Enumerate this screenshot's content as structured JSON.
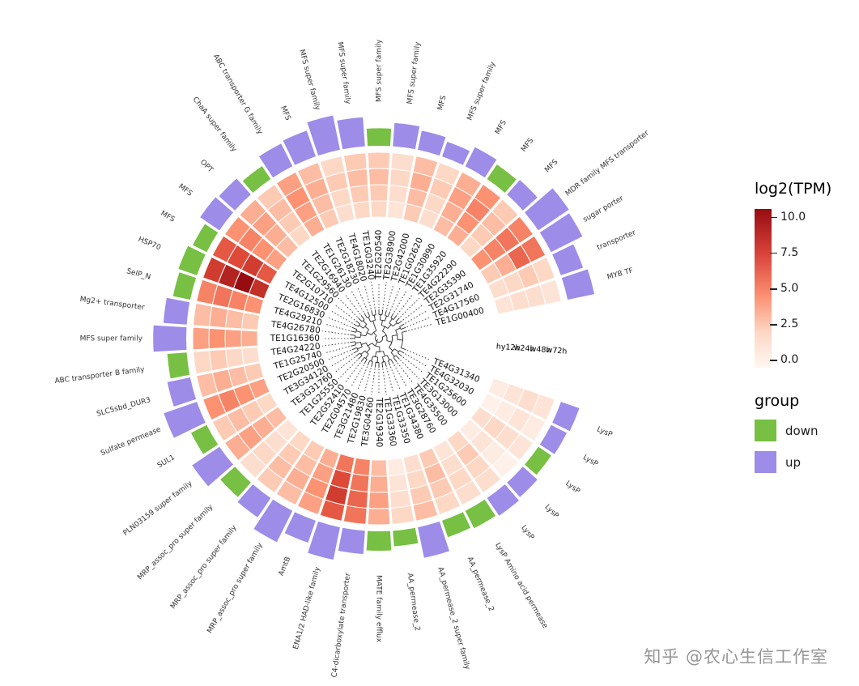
{
  "chart_data": {
    "type": "heatmap",
    "subtype": "circular-heatmap-with-radial-dendrogram",
    "title": "",
    "samples": [
      "hy12h",
      "w24h",
      "w48h",
      "w72h"
    ],
    "scale": {
      "title": "log2(TPM)",
      "min": 0,
      "max": 10,
      "ticks": [
        "10.0",
        "7.5",
        "5.0",
        "2.5",
        "0.0"
      ]
    },
    "group_colors": {
      "down": "#77C043",
      "up": "#9D8CE8"
    },
    "scale_colors": {
      "low": "#FFF7F3",
      "high": "#960C11"
    },
    "genes": [
      {
        "id": "TE2G20540",
        "family": "MFS super family",
        "group": "down",
        "bar": 0.45,
        "values": [
          2.5,
          3.0,
          3.5,
          3.0
        ]
      },
      {
        "id": "TE2G38900",
        "family": "MFS super family",
        "group": "up",
        "bar": 0.6,
        "values": [
          1.5,
          2.0,
          2.5,
          2.0
        ]
      },
      {
        "id": "TE2G42000",
        "family": "MFS",
        "group": "up",
        "bar": 0.5,
        "values": [
          3.0,
          3.5,
          4.0,
          3.5
        ]
      },
      {
        "id": "TE1G02620",
        "family": "MFS super family",
        "group": "up",
        "bar": 0.4,
        "values": [
          2.0,
          2.5,
          3.0,
          2.5
        ]
      },
      {
        "id": "TE1G30890",
        "family": "MFS",
        "group": "up",
        "bar": 0.55,
        "values": [
          3.5,
          4.0,
          4.5,
          4.0
        ]
      },
      {
        "id": "TE1G35920",
        "family": "MFS",
        "group": "down",
        "bar": 0.45,
        "values": [
          4.0,
          5.0,
          5.5,
          5.0
        ]
      },
      {
        "id": "TE4G22290",
        "family": "MFS",
        "group": "up",
        "bar": 0.5,
        "values": [
          2.5,
          3.0,
          3.5,
          3.0
        ]
      },
      {
        "id": "TE2G35390",
        "family": "MDR family MFS transporter",
        "group": "up",
        "bar": 0.95,
        "values": [
          5.0,
          5.5,
          6.0,
          5.5
        ]
      },
      {
        "id": "TE2G31740",
        "family": "sugar porter",
        "group": "up",
        "bar": 0.9,
        "values": [
          3.0,
          4.0,
          6.5,
          6.0
        ]
      },
      {
        "id": "TE4G17560",
        "family": "transporter",
        "group": "up",
        "bar": 0.6,
        "values": [
          2.0,
          2.5,
          3.0,
          2.5
        ]
      },
      {
        "id": "TE1G00400",
        "family": "MYB TF",
        "group": "up",
        "bar": 0.7,
        "values": [
          1.5,
          2.0,
          2.0,
          1.5
        ]
      },
      {
        "id": "TE4G31340",
        "family": "LysP",
        "group": "up",
        "bar": 0.5,
        "values": [
          1.0,
          1.5,
          2.0,
          1.5
        ]
      },
      {
        "id": "TE4G32030",
        "family": "LysP",
        "group": "up",
        "bar": 0.45,
        "values": [
          0.5,
          1.0,
          1.5,
          1.0
        ]
      },
      {
        "id": "TE1G25600",
        "family": "LysP",
        "group": "down",
        "bar": 0.4,
        "values": [
          2.0,
          2.5,
          2.0,
          1.5
        ]
      },
      {
        "id": "TE3G13000",
        "family": "LysP",
        "group": "up",
        "bar": 0.5,
        "values": [
          1.0,
          1.5,
          1.0,
          0.5
        ]
      },
      {
        "id": "TE4G35500",
        "family": "LysP",
        "group": "up",
        "bar": 0.55,
        "values": [
          2.5,
          3.0,
          2.5,
          2.0
        ]
      },
      {
        "id": "TE3G28760",
        "family": "LysP Amino acid permease",
        "group": "down",
        "bar": 0.5,
        "values": [
          1.5,
          2.0,
          2.5,
          2.0
        ]
      },
      {
        "id": "TE1G34380",
        "family": "AA_permease_2",
        "group": "down",
        "bar": 0.45,
        "values": [
          3.0,
          3.5,
          3.0,
          2.5
        ]
      },
      {
        "id": "TE1G33350",
        "family": "AA_permease_2 super family",
        "group": "up",
        "bar": 0.8,
        "values": [
          2.0,
          2.5,
          3.0,
          3.5
        ]
      },
      {
        "id": "TE1G33360",
        "family": "AA_permease_2",
        "group": "down",
        "bar": 0.4,
        "values": [
          1.0,
          1.5,
          2.0,
          2.5
        ]
      },
      {
        "id": "TE2G19340",
        "family": "MATE family efflux",
        "group": "down",
        "bar": 0.5,
        "values": [
          3.5,
          4.0,
          4.5,
          4.0
        ]
      },
      {
        "id": "TE3G04260",
        "family": "C4-dicarboxylate transporter",
        "group": "up",
        "bar": 0.6,
        "values": [
          5.5,
          6.0,
          6.5,
          6.0
        ]
      },
      {
        "id": "TE2G19830",
        "family": "ENA1/2 HAD-like family",
        "group": "up",
        "bar": 0.85,
        "values": [
          6.0,
          7.5,
          8.0,
          7.0
        ]
      },
      {
        "id": "TE3G21480",
        "family": "AmtB",
        "group": "up",
        "bar": 0.6,
        "values": [
          4.0,
          4.5,
          5.0,
          4.5
        ]
      },
      {
        "id": "TE2G04570",
        "family": "MRP_assoc_pro super family",
        "group": "up",
        "bar": 0.9,
        "values": [
          3.0,
          3.5,
          4.0,
          3.5
        ]
      },
      {
        "id": "TE2G52410",
        "family": "MRP_assoc_pro super family",
        "group": "up",
        "bar": 0.6,
        "values": [
          2.5,
          3.0,
          3.5,
          3.0
        ]
      },
      {
        "id": "TE1G25550",
        "family": "MRP_assoc_pro super family",
        "group": "down",
        "bar": 0.5,
        "values": [
          1.5,
          2.0,
          2.5,
          2.0
        ]
      },
      {
        "id": "TE3G31760",
        "family": "PLN03159 super family",
        "group": "up",
        "bar": 0.85,
        "values": [
          3.5,
          4.0,
          4.5,
          4.0
        ]
      },
      {
        "id": "TE3G34120",
        "family": "SUL1",
        "group": "down",
        "bar": 0.45,
        "values": [
          2.5,
          3.0,
          3.5,
          3.0
        ]
      },
      {
        "id": "TE2G20500",
        "family": "Sulfate permease",
        "group": "up",
        "bar": 0.9,
        "values": [
          4.5,
          5.0,
          5.5,
          5.0
        ]
      },
      {
        "id": "TE1G25740",
        "family": "SLC5sbd_DUR3",
        "group": "up",
        "bar": 0.6,
        "values": [
          3.0,
          3.5,
          4.0,
          3.5
        ]
      },
      {
        "id": "TE4G24220",
        "family": "ABC transporter B family",
        "group": "down",
        "bar": 0.5,
        "values": [
          2.0,
          2.5,
          3.0,
          2.5
        ]
      },
      {
        "id": "TE1G16360",
        "family": "MFS super family",
        "group": "up",
        "bar": 0.85,
        "values": [
          4.0,
          4.5,
          5.0,
          4.5
        ]
      },
      {
        "id": "TE4G26780",
        "family": "Mg2+ transporter",
        "group": "up",
        "bar": 0.6,
        "values": [
          3.0,
          3.5,
          4.0,
          3.5
        ]
      },
      {
        "id": "TE4G29210",
        "family": "SelP_N",
        "group": "down",
        "bar": 0.45,
        "values": [
          5.0,
          5.5,
          6.0,
          5.5
        ]
      },
      {
        "id": "TE2G16830",
        "family": "HSP70",
        "group": "down",
        "bar": 0.5,
        "values": [
          8.5,
          10.0,
          9.0,
          8.0
        ]
      },
      {
        "id": "TE4G12500",
        "family": "MFS",
        "group": "down",
        "bar": 0.4,
        "values": [
          7.0,
          8.0,
          7.5,
          7.0
        ]
      },
      {
        "id": "TE2G10710",
        "family": "MFS",
        "group": "up",
        "bar": 0.6,
        "values": [
          4.5,
          5.0,
          5.5,
          5.0
        ]
      },
      {
        "id": "TE1G29560",
        "family": "OPT",
        "group": "up",
        "bar": 0.55,
        "values": [
          3.5,
          4.0,
          4.5,
          4.0
        ]
      },
      {
        "id": "TE2G16940",
        "family": "ChaA super family",
        "group": "down",
        "bar": 0.4,
        "values": [
          2.5,
          3.0,
          3.5,
          3.0
        ]
      },
      {
        "id": "TE1G26130",
        "family": "ABC transporter G family",
        "group": "up",
        "bar": 0.65,
        "values": [
          4.0,
          4.5,
          5.0,
          4.5
        ]
      },
      {
        "id": "TE2G18230",
        "family": "MFS",
        "group": "up",
        "bar": 0.7,
        "values": [
          3.0,
          3.5,
          4.0,
          3.5
        ]
      },
      {
        "id": "TE4G18020",
        "family": "MFS super family",
        "group": "up",
        "bar": 0.9,
        "values": [
          2.0,
          2.5,
          3.0,
          2.5
        ]
      },
      {
        "id": "TE1G03240",
        "family": "MFS super family",
        "group": "up",
        "bar": 0.75,
        "values": [
          2.5,
          3.0,
          3.5,
          3.0
        ]
      }
    ]
  },
  "legend": {
    "scale_title": "log2(TPM)",
    "scale_ticks": [
      "10.0",
      "7.5",
      "5.0",
      "2.5",
      "0.0"
    ],
    "group_title": "group",
    "down_label": "down",
    "up_label": "up"
  },
  "watermark": "知乎 @农心生信工作室"
}
